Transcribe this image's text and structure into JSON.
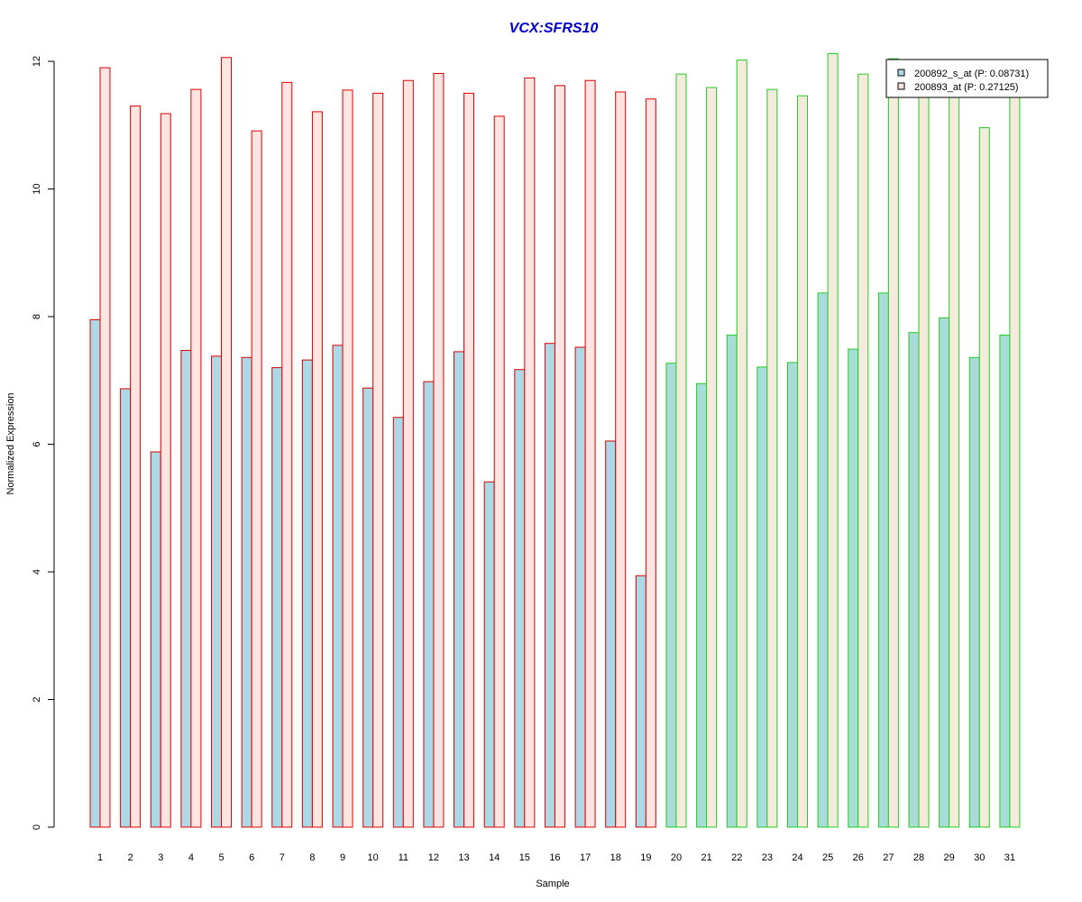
{
  "chart_data": {
    "type": "bar",
    "title": "VCX:SFRS10",
    "xlabel": "Sample",
    "ylabel": "Normalized Expression",
    "ylim": [
      0,
      12
    ],
    "yticks": [
      0,
      2,
      4,
      6,
      8,
      10,
      12
    ],
    "grid": false,
    "legend_position": "top-right",
    "categories": [
      "1",
      "2",
      "3",
      "4",
      "5",
      "6",
      "7",
      "8",
      "9",
      "10",
      "11",
      "12",
      "13",
      "14",
      "15",
      "16",
      "17",
      "18",
      "19",
      "20",
      "21",
      "22",
      "23",
      "24",
      "25",
      "26",
      "27",
      "28",
      "29",
      "30",
      "31"
    ],
    "groups": [
      {
        "from": 1,
        "to": 19,
        "border_color": "#dd0000"
      },
      {
        "from": 20,
        "to": 31,
        "border_color": "#22cc22"
      }
    ],
    "series": [
      {
        "name": "200892_s_at (P: 0.08731)",
        "fill_group1": "#add8e6",
        "fill_group2": "#a8dcd8",
        "values": [
          7.95,
          6.87,
          5.88,
          7.47,
          7.38,
          7.36,
          7.2,
          7.32,
          7.55,
          6.88,
          6.42,
          6.98,
          7.45,
          5.41,
          7.17,
          7.58,
          7.52,
          6.05,
          3.94,
          7.27,
          6.95,
          7.71,
          7.21,
          7.28,
          8.37,
          7.49,
          8.37,
          7.75,
          7.98,
          7.36,
          7.71
        ]
      },
      {
        "name": "200893_at (P: 0.27125)",
        "fill_group1": "#ffe4e1",
        "fill_group2": "#f5ebdc",
        "values": [
          11.9,
          11.3,
          11.18,
          11.56,
          12.06,
          10.91,
          11.67,
          11.21,
          11.55,
          11.5,
          11.7,
          11.81,
          11.5,
          11.14,
          11.74,
          11.62,
          11.7,
          11.52,
          11.41,
          11.8,
          11.59,
          12.02,
          11.56,
          11.46,
          12.12,
          11.8,
          12.04,
          11.72,
          11.77,
          10.96,
          11.6
        ]
      }
    ]
  },
  "colors": {
    "title": "#0000cc",
    "axis": "#000000",
    "legend_border": "#000000"
  }
}
